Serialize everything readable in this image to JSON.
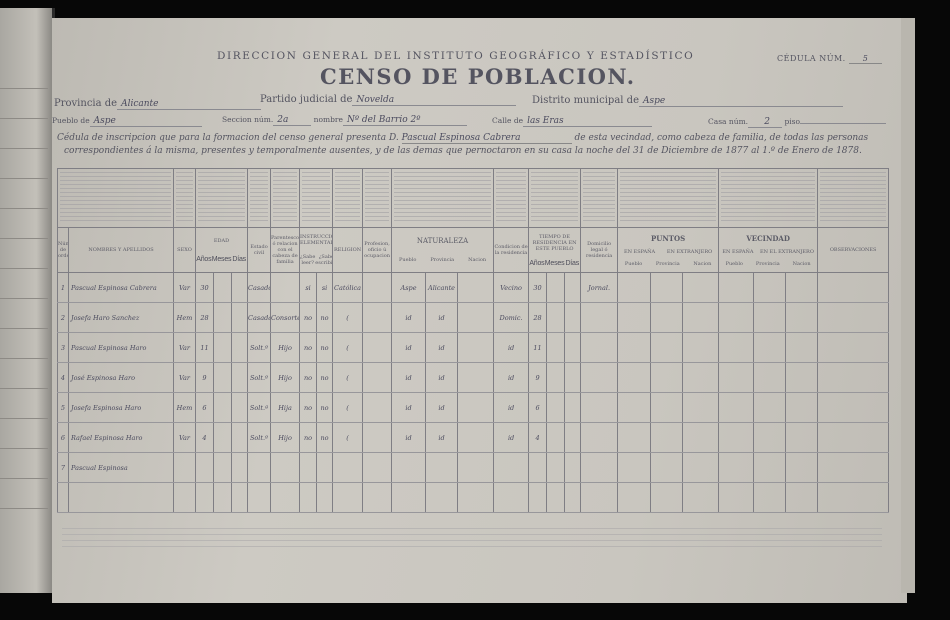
{
  "header": {
    "institution": "DIRECCION GENERAL DEL INSTITUTO GEOGRÁFICO Y ESTADÍSTICO",
    "title": "CENSO DE POBLACION.",
    "cedula_label": "CÉDULA NÚM.",
    "cedula_value": "5"
  },
  "fields": {
    "provincia_label": "Provincia de",
    "provincia_value": "Alicante",
    "partido_label": "Partido judicial de",
    "partido_value": "Novelda",
    "distrito_label": "Distrito municipal de",
    "distrito_value": "Aspe",
    "pueblo_label": "Pueblo de",
    "pueblo_value": "Aspe",
    "seccion_label": "Seccion núm.",
    "seccion_value": "2a",
    "nombre_label": "nombre",
    "nombre_value": "Nº del Barrio 2º",
    "calle_label": "Calle de",
    "calle_value": "las Eras",
    "casa_label": "Casa núm.",
    "casa_value": "2",
    "piso_label": "piso",
    "piso_value": ""
  },
  "intro": {
    "line1_a": "Cédula de inscripcion que para la formacion del censo general presenta D.",
    "head_of_family": "Pascual Espinosa Cabrera",
    "line1_b": "de esta vecindad, como cabeza de familia, de todas las personas",
    "line2": "correspondientes á la misma, presentes y temporalmente ausentes, y de las demas que pernoctaron en su casa la noche del 31 de Diciembre de 1877 al 1.º de Enero de 1878."
  },
  "columns": {
    "numero": "Número de orden",
    "nombres": "NOMBRES Y APELLIDOS",
    "sexo": "SEXO",
    "edad": "EDAD",
    "edad_sub": [
      "Años",
      "Meses",
      "Días"
    ],
    "estado": "Estado civil",
    "parentesco": "Parentesco ó relacion con el cabeza de familia",
    "instruccion": "INSTRUCCION ELEMENTAL",
    "instruccion_sub": [
      "¿Sabe leer?",
      "¿Sabe escribir?"
    ],
    "religion": "RELIGION",
    "profesion": "Profesion, oficio ú ocupacion",
    "naturaleza": "NATURALEZA",
    "naturaleza_sub": [
      "Pueblo",
      "Provincia",
      "Nacion"
    ],
    "condicion": "Condicion de la residencia",
    "tiempo": "TIEMPO DE RESIDENCIA EN ESTE PUEBLO",
    "tiempo_sub": [
      "Años",
      "Meses",
      "Días"
    ],
    "domicilio": "Domicilio legal ó residencia",
    "puntos": "PUNTOS",
    "puntos_sub": [
      "EN ESPAÑA",
      "EN EXTRANJERO"
    ],
    "puntos_sub2": [
      "Pueblo",
      "Provincia",
      "Nacion"
    ],
    "vecindad": "VECINDAD",
    "vecindad_sub": [
      "EN ESPAÑA",
      "EN EL EXTRANJERO"
    ],
    "vecindad_sub2": [
      "Pueblo",
      "Provincia",
      "Nacion"
    ],
    "observaciones": "OBSERVACIONES"
  },
  "rows": [
    {
      "n": "1",
      "name": "Pascual Espinosa Cabrera",
      "sexo": "Var",
      "edad": "30",
      "estado": "Casado",
      "parentesco": "",
      "leer": "si",
      "escribir": "si",
      "religion": "Católica",
      "pueblo": "Aspe",
      "provincia": "Alicante",
      "condicion": "Vecino",
      "tiempo": "30",
      "domicilio": "Jornal."
    },
    {
      "n": "2",
      "name": "Josefa Haro Sanchez",
      "sexo": "Hem",
      "edad": "28",
      "estado": "Casada",
      "parentesco": "Consorte",
      "leer": "no",
      "escribir": "no",
      "religion": "(",
      "pueblo": "id",
      "provincia": "id",
      "condicion": "Domic.",
      "tiempo": "28",
      "domicilio": ""
    },
    {
      "n": "3",
      "name": "Pascual Espinosa Haro",
      "sexo": "Var",
      "edad": "11",
      "estado": "Solt.º",
      "parentesco": "Hijo",
      "leer": "no",
      "escribir": "no",
      "religion": "(",
      "pueblo": "id",
      "provincia": "id",
      "condicion": "id",
      "tiempo": "11",
      "domicilio": ""
    },
    {
      "n": "4",
      "name": "José Espinosa Haro",
      "sexo": "Var",
      "edad": "9",
      "estado": "Solt.º",
      "parentesco": "Hijo",
      "leer": "no",
      "escribir": "no",
      "religion": "(",
      "pueblo": "id",
      "provincia": "id",
      "condicion": "id",
      "tiempo": "9",
      "domicilio": ""
    },
    {
      "n": "5",
      "name": "Josefa Espinosa Haro",
      "sexo": "Hem",
      "edad": "6",
      "estado": "Solt.ª",
      "parentesco": "Hija",
      "leer": "no",
      "escribir": "no",
      "religion": "(",
      "pueblo": "id",
      "provincia": "id",
      "condicion": "id",
      "tiempo": "6",
      "domicilio": ""
    },
    {
      "n": "6",
      "name": "Rafael Espinosa Haro",
      "sexo": "Var",
      "edad": "4",
      "estado": "Solt.º",
      "parentesco": "Hijo",
      "leer": "no",
      "escribir": "no",
      "religion": "(",
      "pueblo": "id",
      "provincia": "id",
      "condicion": "id",
      "tiempo": "4",
      "domicilio": ""
    },
    {
      "n": "7",
      "name": "Pascual Espinosa",
      "sexo": "",
      "edad": "",
      "estado": "",
      "parentesco": "",
      "leer": "",
      "escribir": "",
      "religion": "",
      "pueblo": "",
      "provincia": "",
      "condicion": "",
      "tiempo": "",
      "domicilio": ""
    }
  ]
}
